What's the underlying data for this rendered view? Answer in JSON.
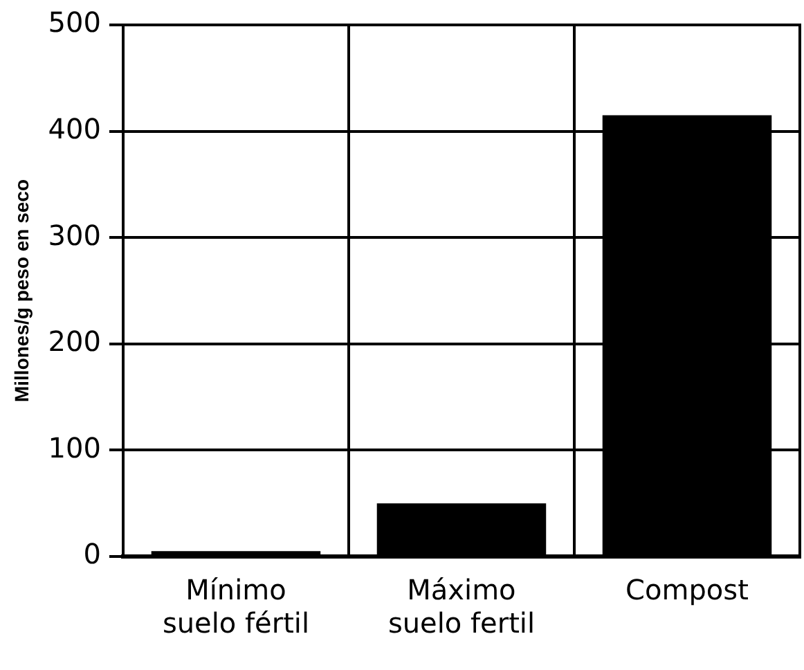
{
  "chart_data": {
    "type": "bar",
    "ylabel": "Millones/g peso en seco",
    "categories": [
      "Mínimo suelo fértil",
      "Máximo suelo fertil",
      "Compost"
    ],
    "values": [
      5,
      50,
      415
    ],
    "color": "#000000",
    "ylim": [
      0,
      500
    ],
    "yticks": [
      0,
      100,
      200,
      300,
      400,
      500
    ],
    "grid": true
  }
}
